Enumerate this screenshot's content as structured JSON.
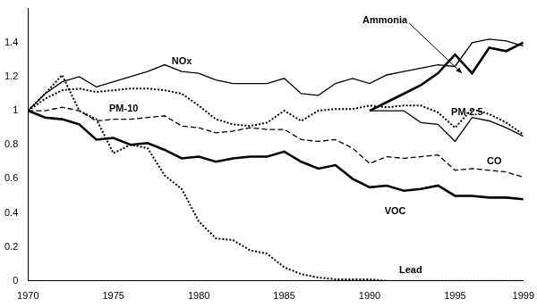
{
  "chart_data": {
    "type": "line",
    "x": [
      1970,
      1971,
      1972,
      1973,
      1974,
      1975,
      1976,
      1977,
      1978,
      1979,
      1980,
      1981,
      1982,
      1983,
      1984,
      1985,
      1986,
      1987,
      1988,
      1989,
      1990,
      1991,
      1992,
      1993,
      1994,
      1995,
      1996,
      1997,
      1998,
      1999
    ],
    "xlim": [
      1970,
      1999
    ],
    "xticks": [
      1970,
      1975,
      1980,
      1985,
      1990,
      1995,
      1999
    ],
    "ylim": [
      0,
      1.6
    ],
    "yticks": [
      0,
      0.2,
      0.4,
      0.6,
      0.8,
      1,
      1.2,
      1.4
    ],
    "grid": false,
    "series": [
      {
        "name": "NOx",
        "color": "#000000",
        "line_style": "solid",
        "values": [
          1.0,
          1.1,
          1.17,
          1.2,
          1.14,
          1.17,
          1.2,
          1.23,
          1.27,
          1.23,
          1.22,
          1.18,
          1.16,
          1.16,
          1.16,
          1.19,
          1.1,
          1.09,
          1.16,
          1.19,
          1.16,
          1.21,
          1.23,
          1.25,
          1.27,
          1.26,
          1.4,
          1.42,
          1.41,
          1.38
        ]
      },
      {
        "name": "Ammonia",
        "color": "#000000",
        "line_style": "thick",
        "values": [
          null,
          null,
          null,
          null,
          null,
          null,
          null,
          null,
          null,
          null,
          null,
          null,
          null,
          null,
          null,
          null,
          null,
          null,
          null,
          null,
          1.0,
          1.05,
          1.1,
          1.15,
          1.22,
          1.33,
          1.22,
          1.37,
          1.35,
          1.4
        ]
      },
      {
        "name": "PM-10",
        "color": "#000000",
        "line_style": "dotted",
        "values": [
          1.0,
          1.07,
          1.12,
          1.13,
          1.11,
          1.12,
          1.13,
          1.13,
          1.12,
          1.1,
          1.03,
          0.95,
          0.92,
          0.91,
          0.93,
          1.0,
          0.94,
          1.0,
          1.01,
          1.01,
          1.03,
          1.02,
          1.03,
          1.03,
          0.99,
          0.9,
          1.01,
          0.98,
          0.93,
          0.86
        ]
      },
      {
        "name": "PM-2.5",
        "color": "#000000",
        "line_style": "solid",
        "values": [
          null,
          null,
          null,
          null,
          null,
          null,
          null,
          null,
          null,
          null,
          null,
          null,
          null,
          null,
          null,
          null,
          null,
          null,
          null,
          null,
          1.0,
          1.0,
          1.0,
          0.93,
          0.92,
          0.82,
          0.96,
          0.94,
          0.9,
          0.85
        ]
      },
      {
        "name": "CO",
        "color": "#000000",
        "line_style": "dashed",
        "values": [
          1.0,
          1.0,
          1.02,
          1.0,
          0.94,
          0.95,
          0.95,
          0.96,
          0.97,
          0.91,
          0.9,
          0.87,
          0.88,
          0.9,
          0.89,
          0.89,
          0.83,
          0.82,
          0.83,
          0.78,
          0.69,
          0.73,
          0.72,
          0.73,
          0.74,
          0.65,
          0.66,
          0.65,
          0.64,
          0.61
        ]
      },
      {
        "name": "VOC",
        "color": "#000000",
        "line_style": "thick",
        "values": [
          1.0,
          0.96,
          0.95,
          0.92,
          0.83,
          0.84,
          0.8,
          0.81,
          0.77,
          0.72,
          0.73,
          0.7,
          0.72,
          0.73,
          0.73,
          0.76,
          0.7,
          0.66,
          0.68,
          0.6,
          0.55,
          0.56,
          0.53,
          0.54,
          0.56,
          0.5,
          0.5,
          0.49,
          0.49,
          0.48
        ]
      },
      {
        "name": "Lead",
        "color": "#000000",
        "line_style": "dotted",
        "values": [
          1.0,
          1.1,
          1.21,
          1.0,
          0.95,
          0.75,
          0.8,
          0.78,
          0.62,
          0.54,
          0.35,
          0.25,
          0.24,
          0.18,
          0.16,
          0.08,
          0.04,
          0.02,
          0.01,
          0.01,
          0.01,
          0,
          0,
          0,
          0,
          0,
          0,
          0,
          0,
          0
        ]
      }
    ],
    "annotations": [
      {
        "text": "NOx",
        "x": 1979,
        "y": 1.29
      },
      {
        "text": "Ammonia",
        "x": 1990.9,
        "y": 1.53,
        "arrow": {
          "x": 1995.4,
          "y": 1.22
        }
      },
      {
        "text": "PM-10",
        "x": 1975.6,
        "y": 1.01
      },
      {
        "text": "PM-2.5",
        "x": 1995.7,
        "y": 0.99
      },
      {
        "text": "CO",
        "x": 1997.3,
        "y": 0.7
      },
      {
        "text": "VOC",
        "x": 1991.5,
        "y": 0.41
      },
      {
        "text": "Lead",
        "x": 1992.4,
        "y": 0.06
      }
    ]
  }
}
